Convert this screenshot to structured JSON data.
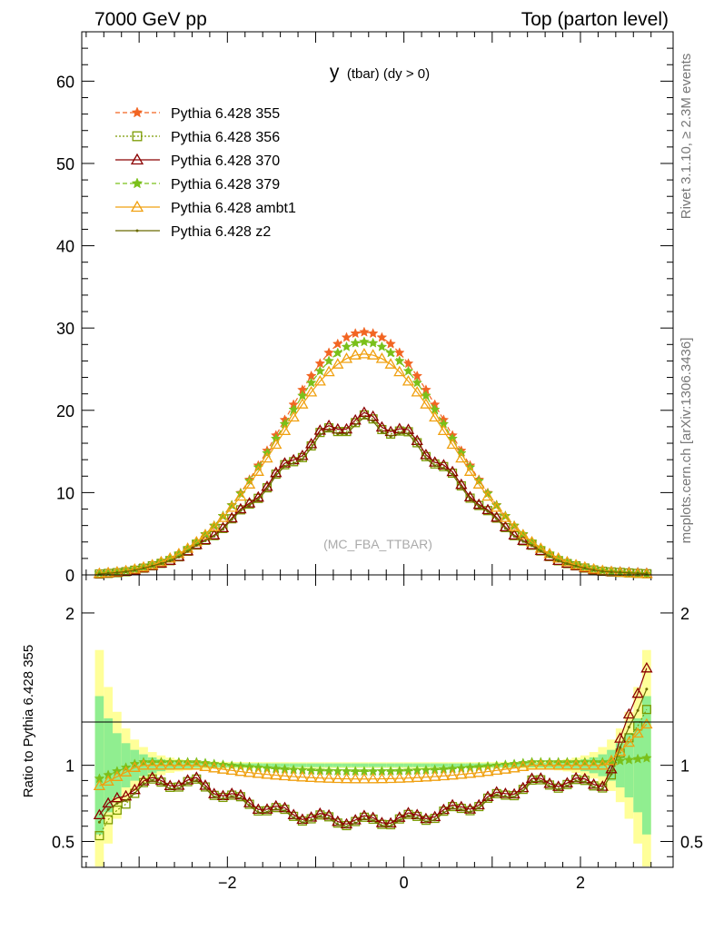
{
  "header": {
    "left": "7000 GeV pp",
    "right": "Top (parton level)"
  },
  "side": {
    "rivet": "Rivet 3.1.10, ≥ 2.3M events",
    "source": "mcplots.cern.ch [arXiv:1306.3436]"
  },
  "chart_data": {
    "type": "line",
    "title": "y",
    "title_suffix": "(tbar) (dy > 0)",
    "watermark": "(MC_FBA_TTBAR)",
    "xlim": [
      -3.65,
      3.05
    ],
    "main": {
      "ylim": [
        0,
        66
      ],
      "yticks": [
        0,
        10,
        20,
        30,
        40,
        50,
        60
      ],
      "ytick_labels": [
        "0",
        "10",
        "20",
        "30",
        "40",
        "50",
        "60"
      ]
    },
    "ratio": {
      "ylabel": "Ratio to Pythia 6.428 355",
      "ylim": [
        0.33,
        2.25
      ],
      "yticks": [
        0.5,
        1,
        2
      ],
      "ytick_labels": [
        "0.5",
        "1",
        "2"
      ]
    },
    "xticks": [
      -2,
      0,
      2
    ],
    "xtick_labels": [
      "−2",
      "0",
      "2"
    ],
    "legend_position": "top-left",
    "bins": {
      "start": -3.5,
      "end": 2.8,
      "width": 0.1
    },
    "series": [
      {
        "name": "Pythia 6.428 355",
        "color": "#f26522",
        "marker": "star",
        "dash": "dashed",
        "peak": 29.5,
        "center": -0.45,
        "sigma": 0.95,
        "ratio": [
          1.0,
          1.0
        ],
        "ratio_end": [
          1.0,
          1.0
        ]
      },
      {
        "name": "Pythia 6.428 356",
        "color": "#7a9a01",
        "marker": "square",
        "dash": "dotted",
        "peak": 17.6,
        "center": -0.45,
        "sigma": 0.95,
        "ratio": [
          0.63,
          0.88
        ],
        "ratio_end": [
          0.5,
          1.45
        ]
      },
      {
        "name": "Pythia 6.428 370",
        "color": "#8b0000",
        "marker": "triangle",
        "dash": "solid",
        "peak": 17.8,
        "center": -0.45,
        "sigma": 0.95,
        "ratio": [
          0.64,
          0.89
        ],
        "ratio_end": [
          0.65,
          1.75
        ]
      },
      {
        "name": "Pythia 6.428 379",
        "color": "#7ac01a",
        "marker": "star",
        "dash": "dashed",
        "peak": 28.4,
        "center": -0.45,
        "sigma": 0.95,
        "ratio": [
          0.96,
          1.02
        ],
        "ratio_end": [
          0.9,
          1.05
        ]
      },
      {
        "name": "Pythia 6.428 ambt1",
        "color": "#f0a010",
        "marker": "triangle",
        "dash": "solid",
        "peak": 26.1,
        "center": -0.45,
        "sigma": 0.95,
        "ratio": [
          0.91,
          1.0
        ],
        "ratio_end": [
          0.85,
          1.3
        ]
      },
      {
        "name": "Pythia 6.428 z2",
        "color": "#6b6b00",
        "marker": "dot",
        "dash": "solid",
        "peak": 17.3,
        "center": -0.45,
        "sigma": 0.95,
        "ratio": [
          0.62,
          0.87
        ],
        "ratio_end": [
          0.6,
          1.6
        ]
      }
    ],
    "bands": {
      "inner": "#90ee90",
      "outer": "#ffff99"
    }
  }
}
